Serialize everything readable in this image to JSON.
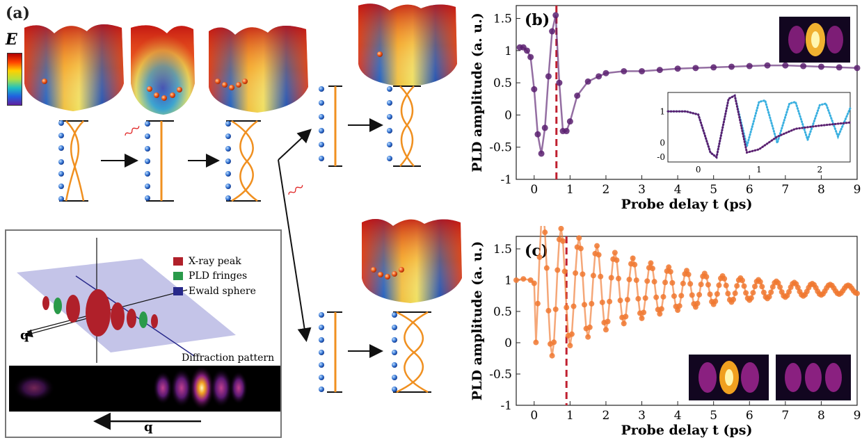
{
  "panel_a": {
    "label": "(a)",
    "energy_symbol": "E",
    "legend": {
      "items": [
        {
          "label": "X-ray peak",
          "color": "#b0202a"
        },
        {
          "label": "PLD fringes",
          "color": "#2a9a4a"
        },
        {
          "label": "Ewald sphere",
          "color": "#27288a"
        }
      ],
      "q_label": "q",
      "diffraction_label": "Diffraction pattern",
      "q_arrow_label": "q"
    }
  },
  "chart_data": [
    {
      "type": "line",
      "panel": "(b)",
      "xlabel": "Probe delay t (ps)",
      "ylabel": "PLD amplitude (a. u.)",
      "xlim": [
        -0.5,
        9
      ],
      "ylim": [
        -1,
        1.7
      ],
      "xticks": [
        "0",
        "1",
        "2",
        "3",
        "4",
        "5",
        "6",
        "7",
        "8",
        "9"
      ],
      "yticks": [
        "-1",
        "-0.5",
        "0",
        "0.5",
        "1",
        "1.5"
      ],
      "dashed_line_x": 0.62,
      "series_color": "#5a2070",
      "x": [
        -0.4,
        -0.3,
        -0.2,
        -0.1,
        0.0,
        0.1,
        0.2,
        0.3,
        0.4,
        0.5,
        0.6,
        0.7,
        0.8,
        0.9,
        1.0,
        1.2,
        1.5,
        1.8,
        2.0,
        2.5,
        3.0,
        3.5,
        4.0,
        4.5,
        5.0,
        5.5,
        6.0,
        6.5,
        7.0,
        7.5,
        8.0,
        8.5,
        9.0
      ],
      "y": [
        1.05,
        1.05,
        1.0,
        0.9,
        0.4,
        -0.3,
        -0.6,
        -0.2,
        0.6,
        1.3,
        1.55,
        0.5,
        -0.25,
        -0.25,
        -0.1,
        0.3,
        0.52,
        0.6,
        0.65,
        0.68,
        0.68,
        0.7,
        0.72,
        0.73,
        0.74,
        0.75,
        0.76,
        0.77,
        0.77,
        0.76,
        0.75,
        0.74,
        0.73
      ],
      "inset": {
        "xlim": [
          -0.5,
          2.5
        ],
        "ylim": [
          -0.6,
          1.6
        ],
        "xticks": [
          "0",
          "1",
          "2"
        ],
        "yticks": [
          "-0",
          "0",
          "1"
        ],
        "series": [
          {
            "color": "#3ab0e0",
            "x": [
              -0.5,
              -0.2,
              0.0,
              0.2,
              0.3,
              0.5,
              0.6,
              0.8,
              1.0,
              1.1,
              1.3,
              1.5,
              1.6,
              1.8,
              2.0,
              2.1,
              2.3,
              2.5
            ],
            "y": [
              1.0,
              1.0,
              0.9,
              -0.3,
              -0.45,
              1.4,
              1.5,
              -0.1,
              1.3,
              1.35,
              0.0,
              1.25,
              1.3,
              0.1,
              1.2,
              1.25,
              0.2,
              1.1
            ]
          },
          {
            "color": "#5a2070",
            "x": [
              -0.5,
              -0.2,
              0.0,
              0.2,
              0.3,
              0.5,
              0.6,
              0.8,
              1.0,
              1.3,
              1.6,
              2.0,
              2.5
            ],
            "y": [
              1.0,
              1.0,
              0.9,
              -0.3,
              -0.45,
              1.4,
              1.5,
              -0.3,
              -0.2,
              0.2,
              0.45,
              0.55,
              0.65
            ]
          }
        ]
      }
    },
    {
      "type": "line",
      "panel": "(c)",
      "xlabel": "Probe delay t (ps)",
      "ylabel": "PLD amplitude (a. u.)",
      "xlim": [
        -0.5,
        9
      ],
      "ylim": [
        -1,
        1.7
      ],
      "xticks": [
        "0",
        "1",
        "2",
        "3",
        "4",
        "5",
        "6",
        "7",
        "8",
        "9"
      ],
      "yticks": [
        "-1",
        "-0.5",
        "0",
        "0.5",
        "1",
        "1.5"
      ],
      "dashed_line_x": 0.9,
      "series_color": "#f07830",
      "oscillation": {
        "offset": 0.85,
        "amp0": 1.25,
        "period": 0.5,
        "decay": 3.0,
        "start": 0.0,
        "end": 9.0
      },
      "pre_x": [
        -0.5,
        -0.3,
        -0.1,
        0.0
      ],
      "pre_y": [
        1.0,
        1.02,
        1.0,
        0.95
      ]
    }
  ]
}
